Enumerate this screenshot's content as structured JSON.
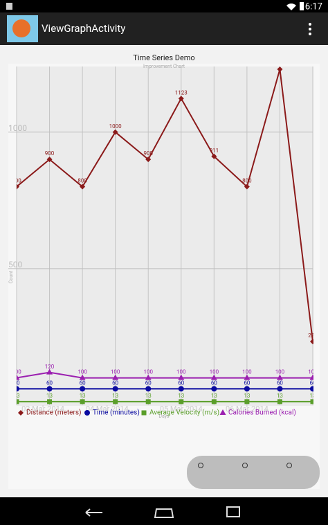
{
  "status_bar": {
    "time": "6:17"
  },
  "app_bar": {
    "title": "ViewGraphActivity"
  },
  "chart_data": {
    "type": "line",
    "title": "Time Series Demo",
    "subtitle": "Improvement Chart",
    "xlabel": "Days",
    "ylabel": "Count",
    "x": [
      0,
      1,
      2,
      3,
      4,
      5,
      6,
      7,
      8,
      9
    ],
    "xlim": [
      0,
      9
    ],
    "xticks": [
      {
        "value": 0.8,
        "label": "03 Mar 2014"
      },
      {
        "value": 2.75,
        "label": "04 Mar 2014"
      },
      {
        "value": 5,
        "label": "05 Mar 2014"
      },
      {
        "value": 7,
        "label": "06 Mar 2014"
      }
    ],
    "ylim": [
      0,
      1230
    ],
    "yticks": [
      500,
      1000
    ],
    "grid": true,
    "series": [
      {
        "name": "Distance (meters)",
        "color": "#8b1a1a",
        "marker": "diamond",
        "values": [
          800,
          900,
          800,
          1000,
          900,
          1123,
          911,
          800,
          1230,
          233
        ]
      },
      {
        "name": "Time (minutes)",
        "color": "#0a0aa0",
        "marker": "circle",
        "values": [
          60,
          60,
          60,
          60,
          60,
          60,
          60,
          60,
          60,
          60
        ]
      },
      {
        "name": "Average Velocity (m/s)",
        "color": "#5a9e2a",
        "marker": "square",
        "values": [
          13,
          13,
          13,
          13,
          13,
          13,
          13,
          13,
          13,
          13
        ]
      },
      {
        "name": "Calories Burned (kcal)",
        "color": "#9b1fb0",
        "marker": "triangle",
        "values": [
          100,
          120,
          100,
          100,
          100,
          100,
          100,
          100,
          100,
          100
        ]
      }
    ]
  }
}
